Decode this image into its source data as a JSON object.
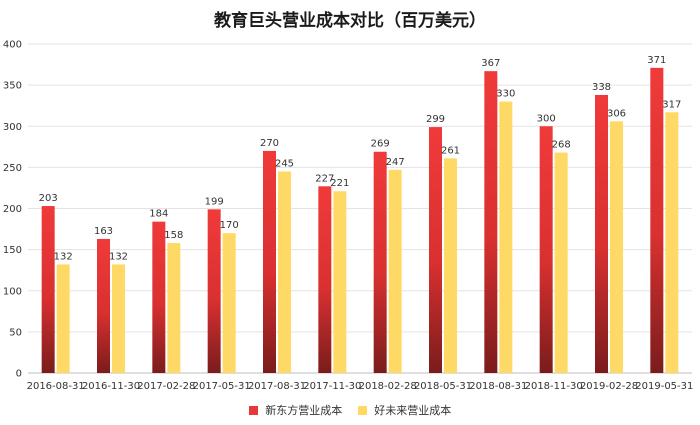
{
  "chart_data": {
    "type": "bar",
    "title": "教育巨头营业成本对比（百万美元）",
    "xlabel": "",
    "ylabel": "",
    "ylim": [
      0,
      400
    ],
    "yticks": [
      0,
      50,
      100,
      150,
      200,
      250,
      300,
      350,
      400
    ],
    "grid": true,
    "legend_position": "bottom",
    "categories": [
      "2016-08-31",
      "2016-11-30",
      "2017-02-28",
      "2017-05-31",
      "2017-08-31",
      "2017-11-30",
      "2018-02-28",
      "2018-05-31",
      "2018-08-31",
      "2018-11-30",
      "2019-02-28",
      "2019-05-31"
    ],
    "series": [
      {
        "name": "新东方营业成本",
        "color": "#e8393a",
        "values": [
          203,
          163,
          184,
          199,
          270,
          227,
          269,
          299,
          367,
          300,
          338,
          371
        ]
      },
      {
        "name": "好未来营业成本",
        "color": "#ffd966",
        "values": [
          132,
          132,
          158,
          170,
          245,
          221,
          247,
          261,
          330,
          268,
          306,
          317
        ]
      }
    ]
  }
}
